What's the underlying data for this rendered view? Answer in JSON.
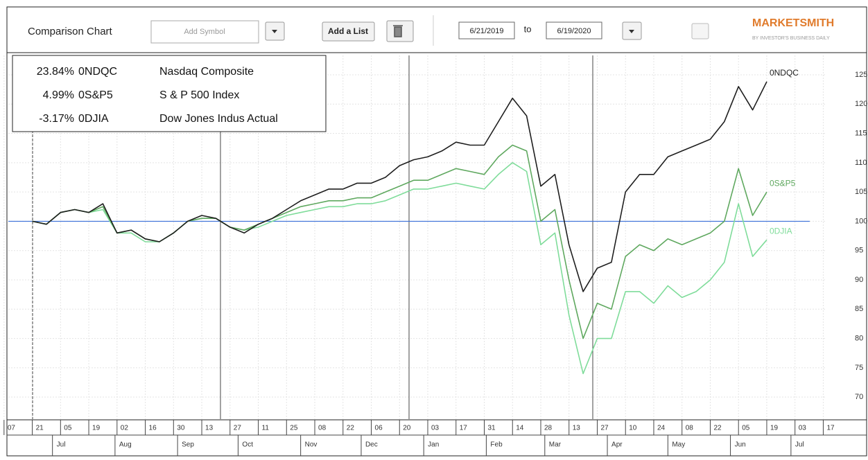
{
  "toolbar": {
    "title": "Comparison Chart",
    "symbol_placeholder": "Add Symbol",
    "list_button": "Add a List",
    "date_from": "6/21/2019",
    "date_sep": "to",
    "date_to": "6/19/2020",
    "logo": "MARKETSMITH",
    "logo_sub": "BY INVESTOR'S BUSINESS DAILY"
  },
  "chart_data": {
    "type": "line",
    "x": [
      "2019-06-21",
      "2019-06-28",
      "2019-07-05",
      "2019-07-12",
      "2019-07-19",
      "2019-07-26",
      "2019-08-02",
      "2019-08-09",
      "2019-08-16",
      "2019-08-23",
      "2019-08-30",
      "2019-09-06",
      "2019-09-13",
      "2019-09-20",
      "2019-09-27",
      "2019-10-04",
      "2019-10-11",
      "2019-10-18",
      "2019-10-25",
      "2019-11-01",
      "2019-11-08",
      "2019-11-15",
      "2019-11-22",
      "2019-11-29",
      "2019-12-06",
      "2019-12-13",
      "2019-12-20",
      "2019-12-27",
      "2020-01-03",
      "2020-01-10",
      "2020-01-17",
      "2020-01-24",
      "2020-01-31",
      "2020-02-07",
      "2020-02-14",
      "2020-02-21",
      "2020-02-28",
      "2020-03-06",
      "2020-03-13",
      "2020-03-20",
      "2020-03-27",
      "2020-04-03",
      "2020-04-10",
      "2020-04-17",
      "2020-04-24",
      "2020-05-01",
      "2020-05-08",
      "2020-05-15",
      "2020-05-22",
      "2020-05-29",
      "2020-06-05",
      "2020-06-12",
      "2020-06-19"
    ],
    "series": [
      {
        "name": "0NDQC",
        "description": "Nasdaq Composite",
        "change": "23.84%",
        "color": "#1e1e1e",
        "values": [
          100,
          99.5,
          101.5,
          102,
          101.5,
          103,
          98,
          98.5,
          97,
          96.5,
          98,
          100,
          101,
          100.5,
          99,
          98,
          99.5,
          100.5,
          102,
          103.5,
          104.5,
          105.5,
          105.5,
          106.5,
          106.5,
          107.5,
          109.5,
          110.5,
          111,
          112,
          113.5,
          113,
          113,
          117,
          121,
          118,
          106,
          108,
          96,
          88,
          92,
          93,
          105,
          108,
          108,
          111,
          112,
          113,
          114,
          117,
          123,
          119,
          123.84
        ]
      },
      {
        "name": "0S&P5",
        "description": "S & P 500 Index",
        "change": "4.99%",
        "color": "#5fa85f",
        "values": [
          100,
          99.5,
          101.5,
          102,
          101.5,
          102.5,
          98,
          98.5,
          97,
          96.5,
          98,
          100,
          100.5,
          100.5,
          99,
          98.5,
          99.5,
          100.5,
          101.5,
          102.5,
          103,
          103.5,
          103.5,
          104,
          104,
          105,
          106,
          107,
          107,
          108,
          109,
          108.5,
          108,
          111,
          113,
          112,
          100,
          102,
          90,
          80,
          86,
          85,
          94,
          96,
          95,
          97,
          96,
          97,
          98,
          100,
          109,
          101,
          104.99
        ]
      },
      {
        "name": "0DJIA",
        "description": "Dow Jones Indus Actual",
        "change": "-3.17%",
        "color": "#7fdc9a",
        "values": [
          100,
          99.5,
          101.5,
          102,
          101.5,
          102,
          98,
          98,
          96.5,
          96.5,
          98,
          100,
          100.5,
          100.5,
          99,
          98.5,
          99,
          100,
          101,
          101.5,
          102,
          102.5,
          102.5,
          103,
          103,
          103.5,
          104.5,
          105.5,
          105.5,
          106,
          106.5,
          106,
          105.5,
          108,
          110,
          108.5,
          96,
          98,
          84,
          74,
          80,
          80,
          88,
          88,
          86,
          89,
          87,
          88,
          90,
          93,
          103,
          94,
          96.83
        ]
      }
    ],
    "baseline": 100,
    "baseline_color": "#3a6fd8",
    "xlim": [
      "2019-06-05",
      "2020-07-22"
    ],
    "xticks": [
      {
        "value": "2019-06-07",
        "label": "07"
      },
      {
        "value": "2019-06-21",
        "label": "21"
      },
      {
        "value": "2019-07-05",
        "label": "05"
      },
      {
        "value": "2019-07-19",
        "label": "19"
      },
      {
        "value": "2019-08-02",
        "label": "02"
      },
      {
        "value": "2019-08-16",
        "label": "16"
      },
      {
        "value": "2019-08-30",
        "label": "30"
      },
      {
        "value": "2019-09-13",
        "label": "13"
      },
      {
        "value": "2019-09-27",
        "label": "27"
      },
      {
        "value": "2019-10-11",
        "label": "11"
      },
      {
        "value": "2019-10-25",
        "label": "25"
      },
      {
        "value": "2019-11-08",
        "label": "08"
      },
      {
        "value": "2019-11-22",
        "label": "22"
      },
      {
        "value": "2019-12-06",
        "label": "06"
      },
      {
        "value": "2019-12-20",
        "label": "20"
      },
      {
        "value": "2020-01-03",
        "label": "03"
      },
      {
        "value": "2020-01-17",
        "label": "17"
      },
      {
        "value": "2020-01-31",
        "label": "31"
      },
      {
        "value": "2020-02-14",
        "label": "14"
      },
      {
        "value": "2020-02-28",
        "label": "28"
      },
      {
        "value": "2020-03-13",
        "label": "13"
      },
      {
        "value": "2020-03-27",
        "label": "27"
      },
      {
        "value": "2020-04-10",
        "label": "10"
      },
      {
        "value": "2020-04-24",
        "label": "24"
      },
      {
        "value": "2020-05-08",
        "label": "08"
      },
      {
        "value": "2020-05-22",
        "label": "22"
      },
      {
        "value": "2020-06-05",
        "label": "05"
      },
      {
        "value": "2020-06-19",
        "label": "19"
      },
      {
        "value": "2020-07-03",
        "label": "03"
      },
      {
        "value": "2020-07-17",
        "label": "17"
      }
    ],
    "months": [
      {
        "value": "2019-07-01",
        "label": "Jul"
      },
      {
        "value": "2019-08-01",
        "label": "Aug"
      },
      {
        "value": "2019-09-01",
        "label": "Sep"
      },
      {
        "value": "2019-10-01",
        "label": "Oct"
      },
      {
        "value": "2019-11-01",
        "label": "Nov"
      },
      {
        "value": "2019-12-01",
        "label": "Dec"
      },
      {
        "value": "2020-01-01",
        "label": "Jan"
      },
      {
        "value": "2020-02-01",
        "label": "Feb"
      },
      {
        "value": "2020-03-01",
        "label": "Mar"
      },
      {
        "value": "2020-04-01",
        "label": "Apr"
      },
      {
        "value": "2020-05-01",
        "label": "May"
      },
      {
        "value": "2020-06-01",
        "label": "Jun"
      },
      {
        "value": "2020-07-01",
        "label": "Jul"
      }
    ],
    "ylim": [
      66,
      128
    ],
    "yticks": [
      70,
      75,
      80,
      85,
      90,
      95,
      100,
      105,
      110,
      115,
      120,
      125
    ],
    "grid": true
  }
}
